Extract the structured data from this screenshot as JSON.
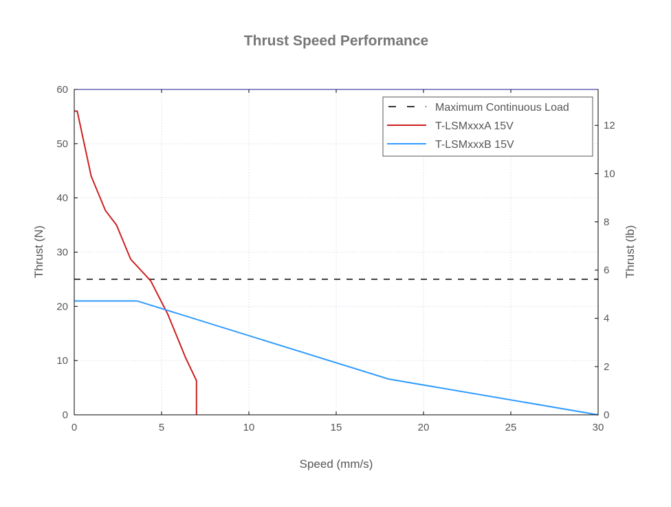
{
  "chart_data": {
    "type": "line",
    "title": "Thrust Speed Performance",
    "xlabel": "Speed (mm/s)",
    "ylabel": "Thrust (N)",
    "y2label": "Thrust (lb)",
    "xlim": [
      0,
      30
    ],
    "ylim": [
      0,
      60
    ],
    "y2lim": [
      0,
      13.49
    ],
    "xticks": [
      0,
      5,
      10,
      15,
      20,
      25,
      30
    ],
    "yticks": [
      0,
      10,
      20,
      30,
      40,
      50,
      60
    ],
    "y2ticks": [
      0,
      2,
      4,
      6,
      8,
      10,
      12
    ],
    "grid": true,
    "legend_position": "top-right",
    "series": [
      {
        "name": "Maximum Continuous Load",
        "style": "dashed",
        "color": "#333333",
        "x": [
          0,
          30
        ],
        "y": [
          25,
          25
        ]
      },
      {
        "name": "T-LSMxxxA 15V",
        "style": "solid",
        "color": "#cc1f1f",
        "x": [
          0,
          0.17,
          0.97,
          1.78,
          2.42,
          3.23,
          4.38,
          5.35,
          6.38,
          7.0,
          7.0
        ],
        "y": [
          56,
          56,
          44,
          37.7,
          35,
          28.7,
          24.7,
          18.6,
          10.5,
          6.3,
          0
        ]
      },
      {
        "name": "T-LSMxxxB 15V",
        "style": "solid",
        "color": "#2e9bff",
        "x": [
          0,
          3.6,
          18,
          30
        ],
        "y": [
          21,
          21,
          6.6,
          0
        ]
      }
    ]
  }
}
